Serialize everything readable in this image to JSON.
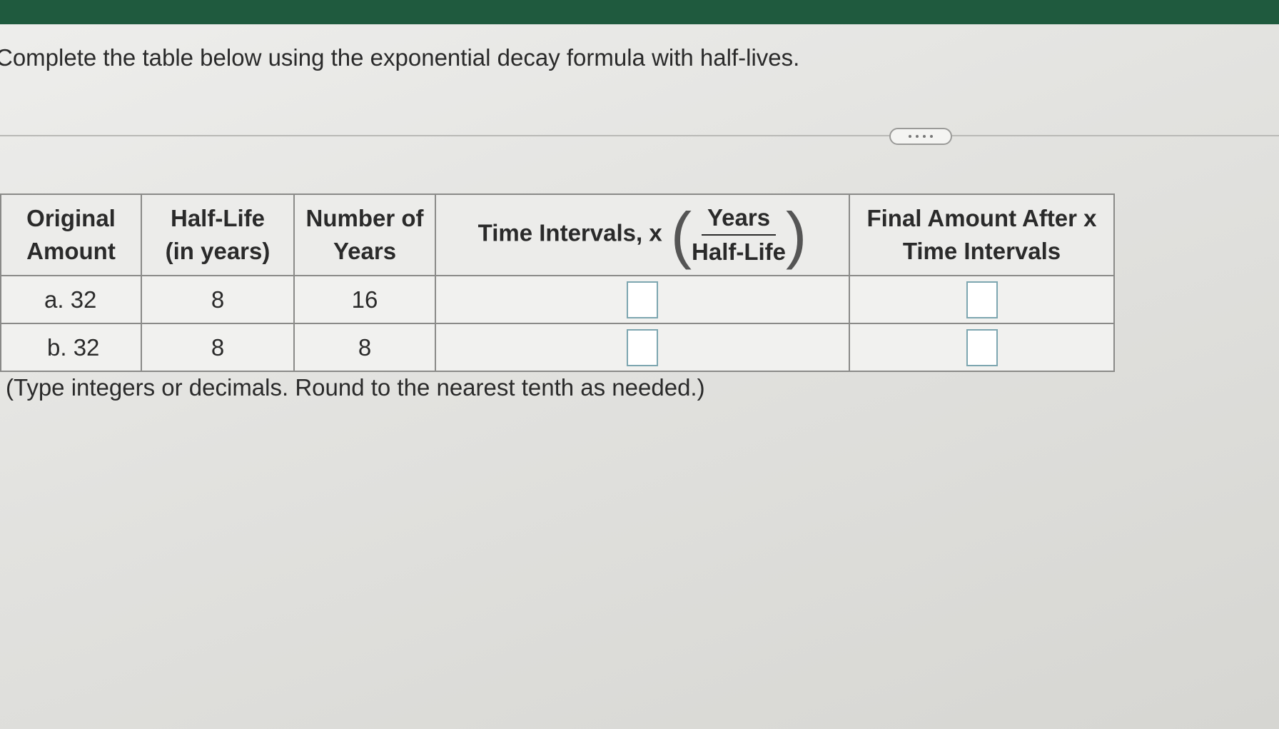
{
  "instruction": "Complete the table below using the exponential decay formula with half-lives.",
  "table": {
    "headers": [
      {
        "lines": [
          "Original",
          "Amount"
        ]
      },
      {
        "lines": [
          "Half-Life",
          "(in years)"
        ]
      },
      {
        "lines": [
          "Number of",
          "Years"
        ]
      },
      {
        "label": "Time Intervals, x",
        "numerator": "Years",
        "denominator": "Half-Life"
      },
      {
        "lines": [
          "Final Amount After x",
          "Time Intervals"
        ]
      }
    ],
    "rows": [
      [
        "a. 32",
        "8",
        "16"
      ],
      [
        "b. 32",
        "8",
        "8"
      ]
    ]
  },
  "note": "(Type integers or decimals. Round to the nearest tenth as needed.)"
}
